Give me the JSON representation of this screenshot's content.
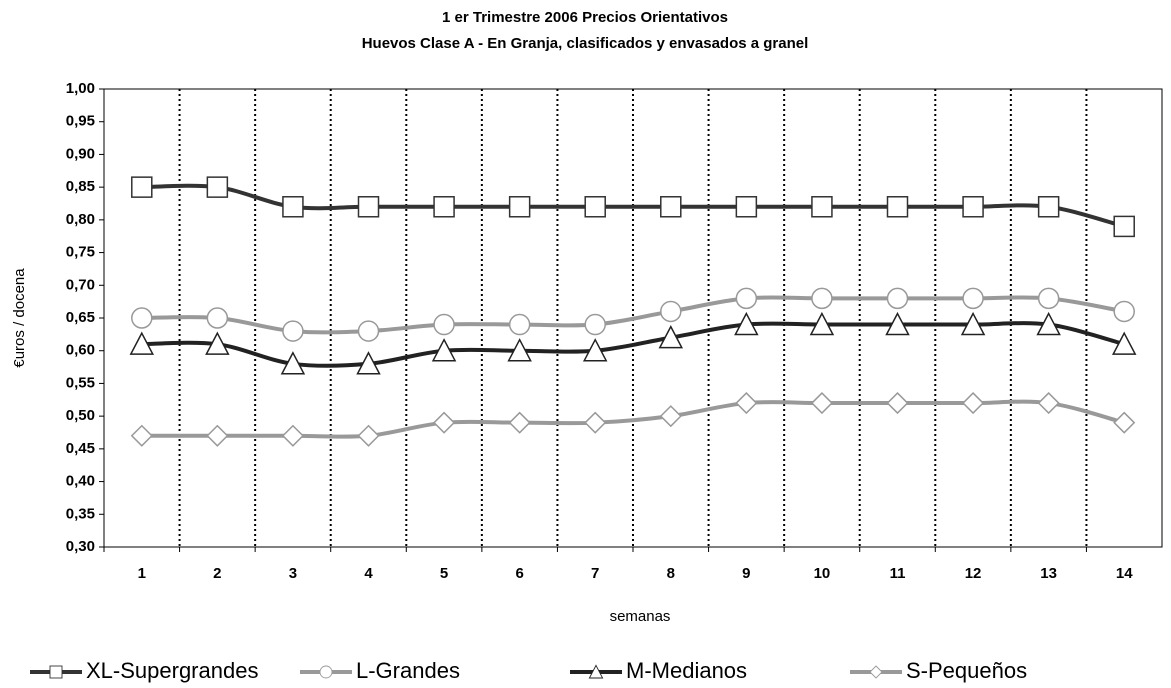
{
  "chart_data": {
    "type": "line",
    "title": "1 er Trimestre 2006  Precios Orientativos",
    "subtitle": "Huevos Clase A - En Granja, clasificados y envasados a granel",
    "y_label": "€uros / docena",
    "x_label": "semanas",
    "categories": [
      "1",
      "2",
      "3",
      "4",
      "5",
      "6",
      "7",
      "8",
      "9",
      "10",
      "11",
      "12",
      "13",
      "14"
    ],
    "ylim": [
      0.3,
      1.0
    ],
    "yticks": [
      {
        "value": 0.3,
        "label": "0,30"
      },
      {
        "value": 0.35,
        "label": "0,35"
      },
      {
        "value": 0.4,
        "label": "0,40"
      },
      {
        "value": 0.45,
        "label": "0,45"
      },
      {
        "value": 0.5,
        "label": "0,50"
      },
      {
        "value": 0.55,
        "label": "0,55"
      },
      {
        "value": 0.6,
        "label": "0,60"
      },
      {
        "value": 0.65,
        "label": "0,65"
      },
      {
        "value": 0.7,
        "label": "0,70"
      },
      {
        "value": 0.75,
        "label": "0,75"
      },
      {
        "value": 0.8,
        "label": "0,80"
      },
      {
        "value": 0.85,
        "label": "0,85"
      },
      {
        "value": 0.9,
        "label": "0,90"
      },
      {
        "value": 0.95,
        "label": "0,95"
      },
      {
        "value": 1.0,
        "label": "1,00"
      }
    ],
    "grid": "x-dotted",
    "legend": "bottom",
    "series": [
      {
        "name": "XL-Supergrandes",
        "color": "#333333",
        "marker": "square",
        "values": [
          0.85,
          0.85,
          0.82,
          0.82,
          0.82,
          0.82,
          0.82,
          0.82,
          0.82,
          0.82,
          0.82,
          0.82,
          0.82,
          0.79
        ]
      },
      {
        "name": "L-Grandes",
        "color": "#999999",
        "marker": "circle",
        "values": [
          0.65,
          0.65,
          0.63,
          0.63,
          0.64,
          0.64,
          0.64,
          0.66,
          0.68,
          0.68,
          0.68,
          0.68,
          0.68,
          0.66
        ]
      },
      {
        "name": "M-Medianos",
        "color": "#222222",
        "marker": "triangle",
        "values": [
          0.61,
          0.61,
          0.58,
          0.58,
          0.6,
          0.6,
          0.6,
          0.62,
          0.64,
          0.64,
          0.64,
          0.64,
          0.64,
          0.61
        ]
      },
      {
        "name": "S-Pequeños",
        "color": "#999999",
        "marker": "diamond",
        "values": [
          0.47,
          0.47,
          0.47,
          0.47,
          0.49,
          0.49,
          0.49,
          0.5,
          0.52,
          0.52,
          0.52,
          0.52,
          0.52,
          0.49
        ]
      }
    ]
  }
}
